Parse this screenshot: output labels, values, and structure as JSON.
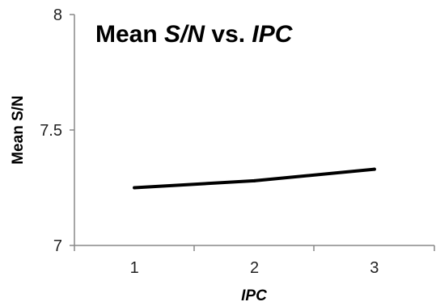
{
  "chart_data": {
    "type": "line",
    "title": {
      "prefix": "Mean ",
      "italic1": "S/N",
      "middle": " vs. ",
      "italic2": "IPC"
    },
    "xlabel": "IPC",
    "ylabel": "Mean S/N",
    "categories": [
      "1",
      "2",
      "3"
    ],
    "series": [
      {
        "values": [
          7.25,
          7.28,
          7.33
        ]
      }
    ],
    "ylim": [
      7,
      8
    ],
    "yticks": [
      "7",
      "7.5",
      "8"
    ],
    "grid": false,
    "legend": "none",
    "line_color": "#000000"
  }
}
